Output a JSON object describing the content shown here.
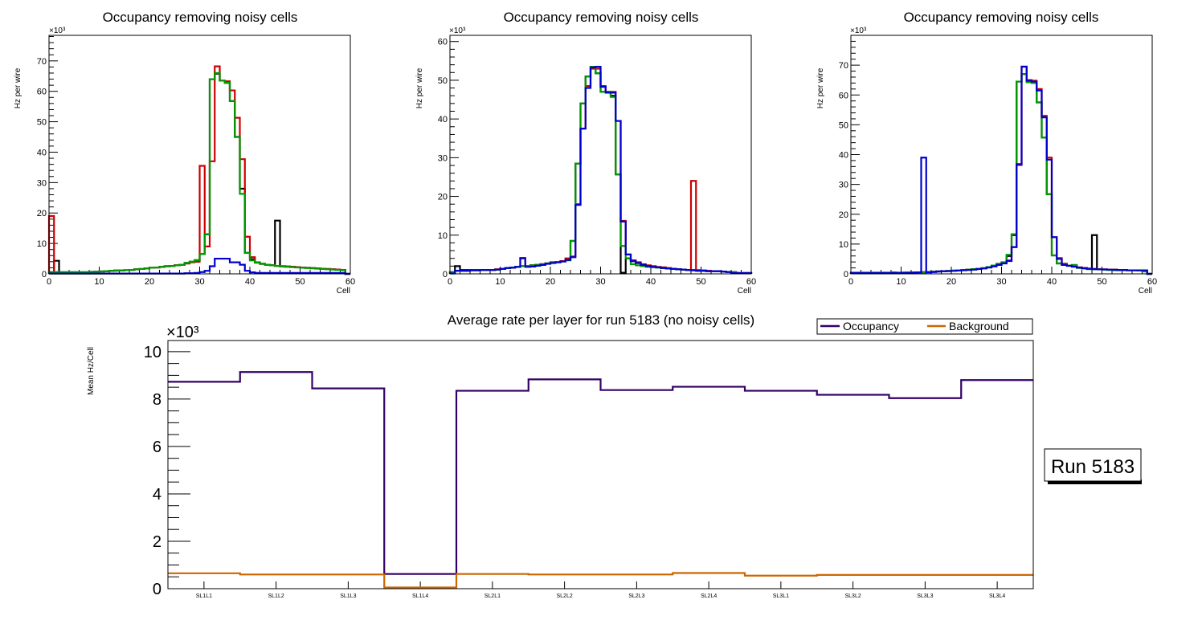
{
  "chart_data": [
    {
      "type": "line",
      "subtype": "step-histogram",
      "title": "Occupancy removing noisy cells",
      "xlabel": "Cell",
      "ylabel": "Hz per wire",
      "y_multiplier": "×10³",
      "xlim": [
        0,
        60
      ],
      "ylim": [
        0,
        78.4
      ],
      "xticks": [
        "0",
        "10",
        "20",
        "30",
        "40",
        "50",
        "60"
      ],
      "yticks": [
        "0",
        "10",
        "20",
        "30",
        "40",
        "50",
        "60",
        "70"
      ],
      "ytick_values": [
        0,
        10,
        20,
        30,
        40,
        50,
        60,
        70
      ],
      "series": [
        {
          "name": "black",
          "color": "#000000",
          "values": [
            0.3,
            4.3,
            0.4,
            0.4,
            0.4,
            0.4,
            0.5,
            0.5,
            0.6,
            0.7,
            0.8,
            0.9,
            1,
            1.1,
            1.1,
            1.2,
            1.3,
            1.5,
            1.6,
            1.8,
            2,
            2.1,
            2.3,
            2.5,
            2.6,
            2.8,
            3,
            3.6,
            4,
            4.5,
            6.5,
            13,
            64,
            65.8,
            63.5,
            62.8,
            56.8,
            45,
            28,
            6.9,
            4.8,
            3.7,
            3.3,
            3,
            2.8,
            17.5,
            2.5,
            2.4,
            2.3,
            2.2,
            2.1,
            2,
            1.9,
            1.8,
            1.7,
            1.6,
            1.5,
            1.4,
            1.3,
            0
          ]
        },
        {
          "name": "red",
          "color": "#cc0000",
          "values": [
            19,
            0.3,
            0.4,
            0.4,
            0.4,
            0.4,
            0.5,
            0.5,
            0.6,
            0.7,
            0.8,
            0.9,
            1,
            1.1,
            1.1,
            1.2,
            1.3,
            1.5,
            1.6,
            1.8,
            2,
            2.1,
            2.3,
            2.5,
            2.6,
            2.8,
            3,
            3.4,
            3.8,
            4,
            35.5,
            9,
            37,
            68.2,
            63.5,
            63.3,
            60.3,
            51.3,
            37.7,
            12.2,
            5.5,
            3.8,
            3.3,
            3,
            2.8,
            2.6,
            2.5,
            2.4,
            2.3,
            2.2,
            2.1,
            2,
            1.9,
            1.8,
            1.7,
            1.6,
            1.5,
            1.4,
            1.3,
            0
          ]
        },
        {
          "name": "green",
          "color": "#009900",
          "values": [
            0.6,
            0.6,
            0.6,
            0.6,
            0.6,
            0.6,
            0.6,
            0.6,
            0.7,
            0.7,
            0.8,
            0.9,
            1,
            1,
            1.1,
            1.2,
            1.3,
            1.5,
            1.6,
            1.8,
            2,
            2.1,
            2.3,
            2.5,
            2.6,
            2.8,
            3,
            3.6,
            4,
            4.5,
            6.5,
            13,
            64,
            66,
            63.5,
            62.8,
            56.8,
            45,
            26.3,
            6.9,
            4.4,
            3.7,
            3.3,
            3,
            2.8,
            2.6,
            2.4,
            2.3,
            2.2,
            2.1,
            2,
            1.9,
            1.8,
            1.7,
            1.6,
            1.5,
            1.4,
            1.3,
            1.2,
            0
          ]
        },
        {
          "name": "blue",
          "color": "#0000cc",
          "values": [
            0.1,
            0.1,
            0.1,
            0.1,
            0.1,
            0.1,
            0.1,
            0.1,
            0.1,
            0.1,
            0.1,
            0.1,
            0.1,
            0.1,
            0.1,
            0.1,
            0.1,
            0.1,
            0.1,
            0.1,
            0.1,
            0.1,
            0.1,
            0.1,
            0.1,
            0.1,
            0.1,
            0.2,
            0.2,
            0.3,
            0.6,
            1,
            2.5,
            5,
            5,
            5,
            3.8,
            3.8,
            3,
            1,
            0.5,
            0.3,
            0.3,
            0.3,
            0.3,
            0.3,
            0.3,
            0.3,
            0.3,
            0.3,
            0.3,
            0.3,
            0.3,
            0.3,
            0.3,
            0.3,
            0.3,
            0.3,
            0.3,
            0
          ]
        }
      ]
    },
    {
      "type": "line",
      "subtype": "step-histogram",
      "title": "Occupancy removing noisy cells",
      "xlabel": "Cell",
      "ylabel": "Hz per wire",
      "y_multiplier": "×10³",
      "xlim": [
        0,
        60
      ],
      "ylim": [
        0,
        61.6
      ],
      "xticks": [
        "0",
        "10",
        "20",
        "30",
        "40",
        "50",
        "60"
      ],
      "yticks": [
        "0",
        "10",
        "20",
        "30",
        "40",
        "50",
        "60"
      ],
      "ytick_values": [
        0,
        10,
        20,
        30,
        40,
        50,
        60
      ],
      "series": [
        {
          "name": "black",
          "color": "#000000",
          "values": [
            0.5,
            2,
            1,
            1,
            1,
            1,
            1,
            1,
            1,
            1.1,
            1.3,
            1.5,
            1.6,
            1.8,
            2,
            2,
            2.2,
            2.3,
            2.5,
            2.7,
            3,
            3,
            3.2,
            3.8,
            8.5,
            28.5,
            44,
            51,
            53.5,
            51.8,
            47,
            47,
            46,
            25.7,
            0.3,
            4,
            3.3,
            2.8,
            2.3,
            2,
            1.8,
            1.7,
            1.5,
            1.4,
            1.3,
            1.2,
            1.1,
            1,
            1,
            0.8,
            0.8,
            0.7,
            0.7,
            0.7,
            0.6,
            0.5,
            0.5,
            0.2,
            0.2,
            0.2
          ]
        },
        {
          "name": "red",
          "color": "#cc0000",
          "values": [
            0.5,
            0.8,
            0.8,
            0.8,
            1,
            1,
            1,
            1,
            1,
            1.2,
            1.3,
            1.5,
            1.6,
            1.8,
            4,
            2,
            2.2,
            2.3,
            2.5,
            2.7,
            2.9,
            3,
            3.3,
            4,
            4.5,
            18,
            37.5,
            48.5,
            53,
            53,
            48.5,
            47,
            47,
            39.5,
            13.7,
            5,
            3.5,
            3,
            2.5,
            2.2,
            2,
            1.8,
            1.7,
            1.5,
            1.3,
            1.2,
            1.1,
            1,
            24,
            1,
            0.9,
            0.8,
            0.7,
            0.7,
            0.6,
            0.5,
            0.3,
            0.2,
            0.2,
            0.2
          ]
        },
        {
          "name": "green",
          "color": "#009900",
          "values": [
            0.5,
            0.8,
            0.8,
            0.8,
            0.9,
            0.9,
            1,
            1,
            1,
            1.1,
            1.3,
            1.5,
            1.6,
            1.8,
            2,
            2,
            2.2,
            2.3,
            2.5,
            2.7,
            3,
            3,
            3.2,
            3.5,
            8.5,
            28.5,
            44,
            51,
            53.5,
            51.8,
            47,
            47,
            45.7,
            25.7,
            7.2,
            4,
            2.5,
            2.2,
            2,
            1.8,
            1.7,
            1.6,
            1.5,
            1.4,
            1.3,
            1.2,
            1.1,
            1,
            1,
            0.9,
            0.8,
            0.7,
            0.7,
            0.7,
            0.6,
            0.5,
            0.5,
            0.2,
            0.2,
            0.2
          ]
        },
        {
          "name": "blue",
          "color": "#0000cc",
          "values": [
            0.1,
            0.8,
            0.8,
            0.8,
            0.9,
            0.9,
            1,
            1,
            1,
            1.1,
            1.3,
            1.5,
            1.6,
            1.8,
            4.1,
            1.8,
            1.9,
            2.1,
            2.3,
            2.6,
            2.8,
            3,
            3.2,
            3.6,
            4.3,
            17.8,
            37.5,
            48,
            53.3,
            53.5,
            48.3,
            46.8,
            46.8,
            39.5,
            13.5,
            5,
            3.3,
            2.8,
            2.3,
            2,
            1.8,
            1.7,
            1.5,
            1.4,
            1.3,
            1.2,
            1.1,
            1,
            0.9,
            0.8,
            0.8,
            0.7,
            0.7,
            0.7,
            0.6,
            0.5,
            0.2,
            0.2,
            0.2,
            0.2
          ]
        }
      ]
    },
    {
      "type": "line",
      "subtype": "step-histogram",
      "title": "Occupancy removing noisy cells",
      "xlabel": "Cell",
      "ylabel": "Hz per wire",
      "y_multiplier": "×10³",
      "xlim": [
        0,
        60
      ],
      "ylim": [
        0,
        80
      ],
      "xticks": [
        "0",
        "10",
        "20",
        "30",
        "40",
        "50",
        "60"
      ],
      "yticks": [
        "0",
        "10",
        "20",
        "30",
        "40",
        "50",
        "60",
        "70"
      ],
      "ytick_values": [
        0,
        10,
        20,
        30,
        40,
        50,
        60,
        70
      ],
      "series": [
        {
          "name": "black",
          "color": "#000000",
          "values": [
            0.3,
            0.3,
            0.3,
            0.3,
            0.3,
            0.3,
            0.3,
            0.3,
            0.3,
            0.3,
            0.4,
            0.5,
            0.5,
            0.5,
            0.5,
            0.6,
            0.7,
            0.8,
            0.9,
            1,
            1.1,
            1.2,
            1.3,
            1.4,
            1.5,
            1.7,
            1.9,
            2.2,
            2.6,
            3,
            3.6,
            6,
            13,
            64.5,
            67,
            64.3,
            64,
            57.5,
            45.7,
            26.7,
            6.2,
            3.5,
            3,
            2.8,
            2.5,
            2,
            1.8,
            1.6,
            13,
            1.5,
            1.5,
            1.4,
            1.4,
            1.3,
            1.3,
            1.2,
            1.2,
            1.1,
            1,
            0
          ]
        },
        {
          "name": "red",
          "color": "#cc0000",
          "values": [
            0.3,
            0.3,
            0.2,
            0.3,
            0.3,
            0.3,
            0.3,
            0.3,
            0.3,
            0.3,
            0.4,
            0.5,
            0.5,
            0.5,
            0.6,
            0.6,
            0.7,
            0.8,
            0.9,
            1,
            1.1,
            1.2,
            1.3,
            1.4,
            1.5,
            1.7,
            1.9,
            2.2,
            2.6,
            3,
            3.6,
            4.5,
            9,
            36.5,
            69.5,
            65,
            64.8,
            62,
            53,
            39,
            12.3,
            5.3,
            3.4,
            2.8,
            2.5,
            2.2,
            2,
            1.8,
            1.7,
            1.6,
            1.5,
            1.4,
            1.4,
            1.3,
            1.3,
            1.2,
            1.2,
            1.1,
            1,
            0
          ]
        },
        {
          "name": "green",
          "color": "#009900",
          "values": [
            0.4,
            0.4,
            0.4,
            0.4,
            0.4,
            0.4,
            0.4,
            0.4,
            0.5,
            0.4,
            0.4,
            0.5,
            0.5,
            0.5,
            0.5,
            0.6,
            0.7,
            0.8,
            0.9,
            1,
            1.1,
            1.2,
            1.3,
            1.4,
            1.6,
            1.7,
            1.9,
            2.3,
            2.8,
            3.4,
            3.9,
            6.4,
            13.3,
            64.5,
            67,
            64.3,
            64,
            57.5,
            45.7,
            26.7,
            6.2,
            3.5,
            3,
            2.8,
            3,
            2,
            1.8,
            1.6,
            1.5,
            1.5,
            1.4,
            1.3,
            1.2,
            1.2,
            1.2,
            1.2,
            1.2,
            1.1,
            0.8,
            0
          ]
        },
        {
          "name": "blue",
          "color": "#0000cc",
          "values": [
            0.3,
            0.3,
            0.3,
            0.3,
            0.3,
            0.3,
            0.3,
            0.3,
            0.3,
            0.3,
            0.3,
            0.3,
            0.4,
            0.5,
            39,
            0.5,
            0.6,
            0.8,
            0.9,
            0.9,
            1,
            1.1,
            1.2,
            1.3,
            1.4,
            1.6,
            1.8,
            2.1,
            2.5,
            3,
            3.5,
            4.3,
            9,
            36.8,
            69.5,
            64.8,
            64.5,
            61.5,
            52.5,
            38.3,
            12.3,
            5,
            3,
            2.7,
            2.4,
            2.1,
            1.9,
            1.7,
            1.6,
            1.5,
            1.5,
            1.4,
            1.4,
            1.3,
            1.3,
            1.2,
            1.2,
            1.2,
            1.2,
            0
          ]
        }
      ]
    },
    {
      "type": "line",
      "subtype": "step-histogram",
      "title": "Average rate per layer for run 5183 (no noisy cells)",
      "xlabel": "",
      "ylabel": "Mean Hz/Cell",
      "y_multiplier": "×10³",
      "categories": [
        "SL1L1",
        "SL1L2",
        "SL1L3",
        "SL1L4",
        "SL2L1",
        "SL2L2",
        "SL2L3",
        "SL2L4",
        "SL3L1",
        "SL3L2",
        "SL3L3",
        "SL3L4"
      ],
      "ylim": [
        0,
        10.47
      ],
      "yticks": [
        "0",
        "2",
        "4",
        "6",
        "8",
        "10"
      ],
      "ytick_values": [
        0,
        2,
        4,
        6,
        8,
        10
      ],
      "legend": {
        "placement": "top-right",
        "entries": [
          {
            "label": "Occupancy",
            "color": "#330066"
          },
          {
            "label": "Background",
            "color": "#cc6600"
          }
        ]
      },
      "series": [
        {
          "name": "Occupancy",
          "color": "#330066",
          "values": [
            8.73,
            9.14,
            8.45,
            0.62,
            8.35,
            8.83,
            8.38,
            8.52,
            8.35,
            8.18,
            8.04,
            8.8
          ]
        },
        {
          "name": "Background",
          "color": "#cc6600",
          "values": [
            0.65,
            0.6,
            0.6,
            0.05,
            0.62,
            0.6,
            0.6,
            0.66,
            0.55,
            0.58,
            0.58,
            0.58
          ]
        }
      ]
    }
  ],
  "annotation": {
    "run_label": "Run 5183"
  }
}
